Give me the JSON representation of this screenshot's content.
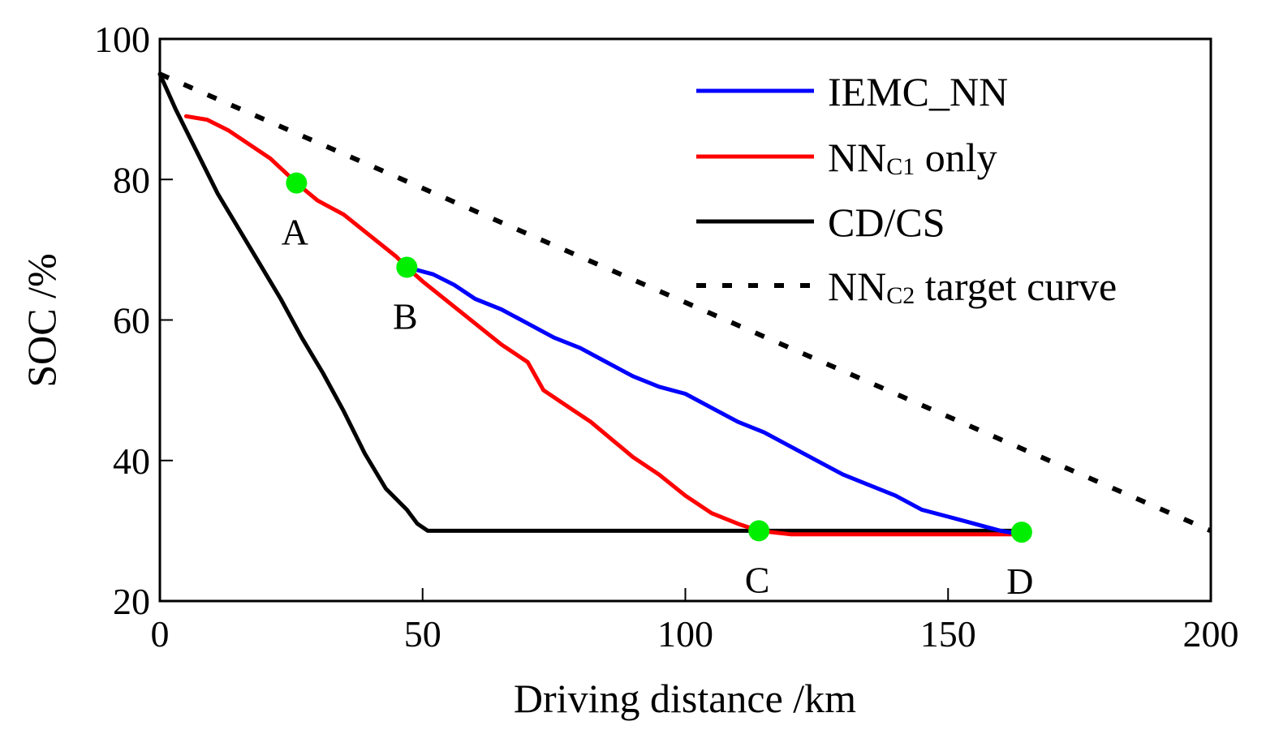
{
  "chart_data": {
    "type": "line",
    "title": "",
    "xlabel": "Driving distance /km",
    "ylabel": "SOC /%",
    "xlim": [
      0,
      200
    ],
    "ylim": [
      20,
      100
    ],
    "xticks": [
      0,
      50,
      100,
      150,
      200
    ],
    "yticks": [
      20,
      40,
      60,
      80,
      100
    ],
    "xtick_labels": [
      "0",
      "50",
      "100",
      "150",
      "200"
    ],
    "ytick_labels": [
      "20",
      "40",
      "60",
      "80",
      "100"
    ],
    "grid": false,
    "legend_position": "top-right",
    "series": [
      {
        "name": "IEMC_NN",
        "legend_main": "IEMC_NN",
        "legend_sub": "",
        "legend_tail": "",
        "color": "#0000ff",
        "style": "solid",
        "x": [
          47,
          52,
          56,
          60,
          65,
          70,
          75,
          80,
          85,
          90,
          95,
          100,
          105,
          110,
          115,
          120,
          125,
          130,
          135,
          140,
          145,
          150,
          155,
          160,
          164
        ],
        "y": [
          67.5,
          66.5,
          65,
          63,
          61.5,
          59.5,
          57.5,
          56,
          54,
          52,
          50.5,
          49.5,
          47.5,
          45.5,
          44,
          42,
          40,
          38,
          36.5,
          35,
          33,
          32,
          31,
          30,
          29.5
        ]
      },
      {
        "name": "NNC1 only",
        "legend_main": "NN",
        "legend_sub": "C1",
        "legend_tail": " only",
        "color": "#ff0000",
        "style": "solid",
        "x": [
          5,
          9,
          13,
          17,
          21,
          26,
          30,
          35,
          40,
          45,
          47,
          50,
          55,
          60,
          65,
          70,
          73,
          78,
          82,
          86,
          90,
          95,
          100,
          105,
          110,
          114,
          120,
          130,
          140,
          150,
          160,
          164
        ],
        "y": [
          89,
          88.5,
          87,
          85,
          83,
          79.5,
          77,
          75,
          72,
          69,
          67.5,
          65.5,
          62.5,
          59.5,
          56.5,
          54,
          50,
          47.5,
          45.5,
          43,
          40.5,
          38,
          35,
          32.5,
          31,
          30,
          29.5,
          29.5,
          29.5,
          29.5,
          29.5,
          29.5
        ]
      },
      {
        "name": "CD/CS",
        "legend_main": "CD/CS",
        "legend_sub": "",
        "legend_tail": "",
        "color": "#000000",
        "style": "solid",
        "x": [
          0,
          3,
          7,
          11,
          15,
          19,
          23,
          27,
          31,
          35,
          39,
          43,
          47,
          49,
          51,
          60,
          80,
          100,
          120,
          140,
          160,
          164
        ],
        "y": [
          95,
          90,
          84,
          78,
          73,
          68,
          63,
          57.5,
          52.5,
          47,
          41,
          36,
          33,
          31,
          30,
          30,
          30,
          30,
          30,
          30,
          30,
          30
        ]
      },
      {
        "name": "NNC2 target curve",
        "legend_main": "NN",
        "legend_sub": "C2",
        "legend_tail": " target curve",
        "color": "#000000",
        "style": "dotted",
        "x": [
          0,
          200
        ],
        "y": [
          95,
          30
        ]
      }
    ],
    "points": [
      {
        "label": "A",
        "x": 26,
        "y": 79.5,
        "label_pos": "below"
      },
      {
        "label": "B",
        "x": 47,
        "y": 67.5,
        "label_pos": "below"
      },
      {
        "label": "C",
        "x": 114,
        "y": 30,
        "label_pos": "below"
      },
      {
        "label": "D",
        "x": 164,
        "y": 29.8,
        "label_pos": "below"
      }
    ],
    "point_color": "#00ee00"
  }
}
